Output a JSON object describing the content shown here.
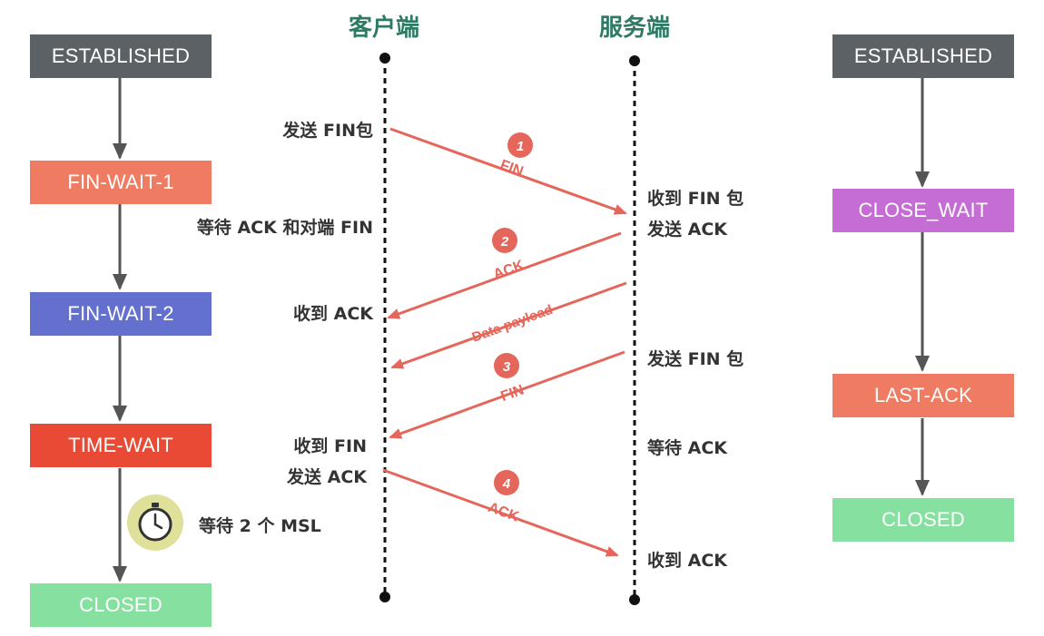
{
  "titles": {
    "client": "客户端",
    "server": "服务端"
  },
  "client_states": {
    "established": "ESTABLISHED",
    "fin_wait_1": "FIN-WAIT-1",
    "fin_wait_2": "FIN-WAIT-2",
    "time_wait": "TIME-WAIT",
    "closed": "CLOSED"
  },
  "server_states": {
    "established": "ESTABLISHED",
    "close_wait": "CLOSE_WAIT",
    "last_ack": "LAST-ACK",
    "closed": "CLOSED"
  },
  "client_labels": {
    "send_fin": "发送 FIN包",
    "wait_ack_fin": "等待 ACK 和对端 FIN",
    "recv_ack": "收到 ACK",
    "recv_fin": "收到 FIN",
    "send_ack": "发送 ACK",
    "wait_2msl": "等待 2 个 MSL"
  },
  "server_labels": {
    "recv_fin": "收到 FIN 包",
    "send_ack": "发送 ACK",
    "send_fin": "发送 FIN 包",
    "wait_ack": "等待 ACK",
    "recv_ack": "收到 ACK"
  },
  "messages": {
    "m1": {
      "number": "1",
      "label": "FIN"
    },
    "m2": {
      "number": "2",
      "label": "ACK"
    },
    "data": {
      "label": "Data payload"
    },
    "m3": {
      "number": "3",
      "label": "FIN"
    },
    "m4": {
      "number": "4",
      "label": "ACK"
    }
  },
  "colors": {
    "established": "#5c6166",
    "fin_wait_1": "#ee7b62",
    "fin_wait_2": "#6370cd",
    "time_wait": "#e84a35",
    "closed": "#86e0a0",
    "close_wait": "#c56dd4",
    "last_ack": "#ee7b62",
    "title": "#2f7a64",
    "arrow": "#e5665a",
    "state_arrow": "#555555"
  }
}
